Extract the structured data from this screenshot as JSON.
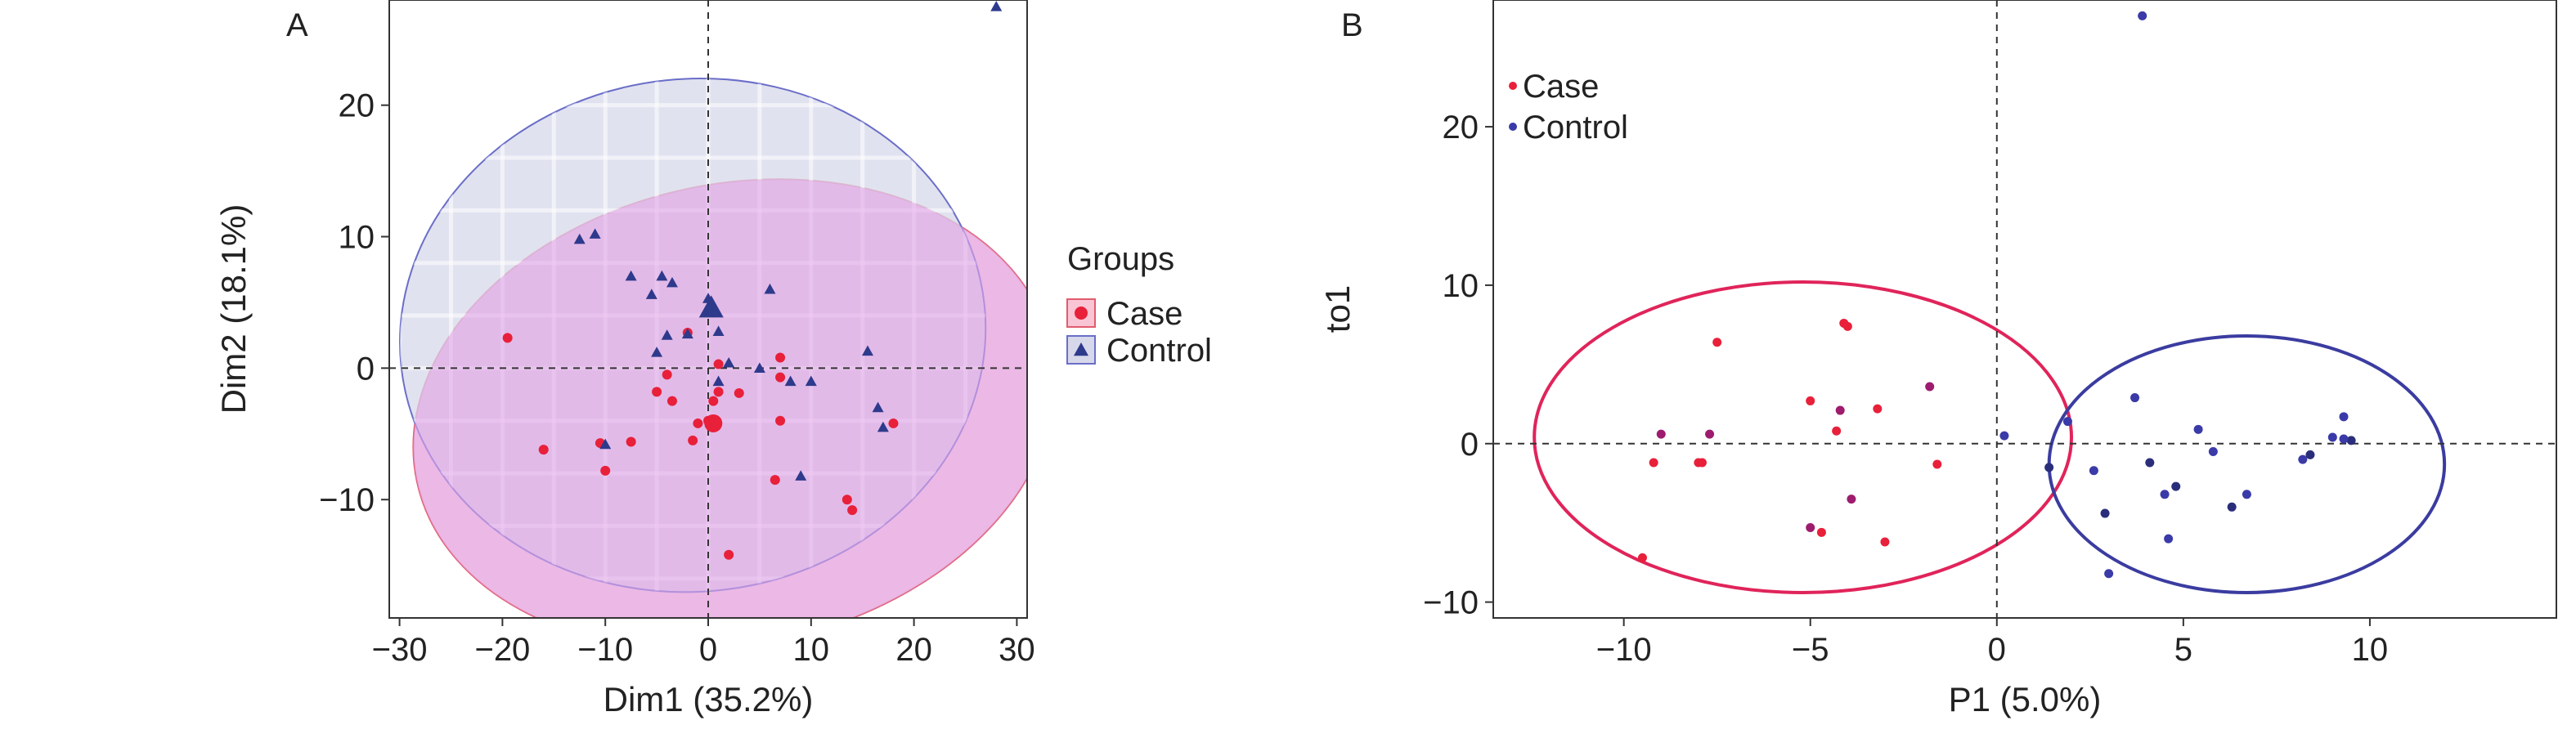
{
  "chart_data": [
    {
      "panel_label": "A",
      "type": "scatter",
      "xlabel": "Dim1 (35.2%)",
      "ylabel": "Dim2 (18.1%)",
      "xlim": [
        -31,
        31
      ],
      "ylim": [
        -19,
        28
      ],
      "xticks": [
        -30,
        -20,
        -10,
        0,
        10,
        20,
        30
      ],
      "yticks": [
        20,
        10,
        0,
        -10
      ],
      "grid": false,
      "reference_lines": {
        "x": 0,
        "y": 0
      },
      "legend": {
        "title": "Groups",
        "position": "right",
        "entries": [
          "Case",
          "Control"
        ]
      },
      "series": [
        {
          "name": "Case",
          "marker": "circle",
          "color": "#e8203a",
          "ellipse": {
            "cx": 2.5,
            "cy": -3.5,
            "rx": 31.5,
            "ry": 17.5,
            "angle": -12,
            "fill": "#f9c4d4",
            "stroke": "#e05c6e"
          },
          "x": [
            -19.5,
            -16,
            -10.5,
            -10,
            -7.5,
            -5,
            -4,
            -3.5,
            -2,
            -1.5,
            -1,
            0,
            0.5,
            1,
            1,
            2,
            3,
            7,
            7,
            7,
            6.5,
            13.5,
            14,
            18
          ],
          "y": [
            2.3,
            -6.2,
            -5.7,
            -7.8,
            -5.6,
            -1.8,
            -0.5,
            -2.5,
            2.7,
            -5.5,
            -4.2,
            -4,
            -2.5,
            -1.8,
            0.3,
            -14.2,
            -1.9,
            0.8,
            -0.7,
            -4,
            -8.5,
            -10,
            -10.8,
            -4.2
          ],
          "centroid": {
            "x": 0.5,
            "y": -4.2
          }
        },
        {
          "name": "Control",
          "marker": "triangle",
          "color": "#2e3a8c",
          "ellipse": {
            "cx": -1.5,
            "cy": 2.5,
            "rx": 28.5,
            "ry": 19.5,
            "angle": -6,
            "fill": "#d7d8ea",
            "stroke": "#6a6ec8"
          },
          "x": [
            28,
            -12.5,
            -11,
            -7.5,
            -5.5,
            -4.5,
            -3.5,
            -4,
            -5,
            0,
            0,
            1,
            1,
            2,
            5,
            6,
            8,
            10,
            15.5,
            16.5,
            17,
            -2,
            -10,
            9
          ],
          "y": [
            27.5,
            9.8,
            10.2,
            7,
            5.6,
            7,
            6.5,
            2.5,
            1.2,
            4.5,
            5.3,
            2.8,
            -1,
            0.4,
            0,
            6,
            -1,
            -1,
            1.3,
            -3,
            -4.5,
            2.6,
            -5.8,
            -8.2
          ],
          "centroid": {
            "x": 0.3,
            "y": 4.6
          }
        }
      ]
    },
    {
      "panel_label": "B",
      "type": "scatter",
      "xlabel": "P1 (5.0%)",
      "ylabel": "to1",
      "xlim": [
        -13.5,
        15
      ],
      "ylim": [
        -11,
        28
      ],
      "xticks": [
        -10,
        -5,
        0,
        5,
        10
      ],
      "yticks": [
        20,
        10,
        0,
        -10
      ],
      "grid": false,
      "reference_lines": {
        "x": 0,
        "y": 0
      },
      "legend": {
        "position": "top-left",
        "entries": [
          "Case",
          "Control"
        ]
      },
      "series": [
        {
          "name": "Case",
          "marker": "circle",
          "color": "#e8203a",
          "ellipse": {
            "cx": -5.2,
            "cy": 0.4,
            "rx": 7.2,
            "ry": 9.8,
            "angle": 0,
            "stroke": "#e0245a"
          },
          "x": [
            -9.5,
            -9.2,
            -9,
            -8,
            -7.9,
            -7.7,
            -7.5,
            -5,
            -5,
            -4.7,
            -4.3,
            -4.2,
            -4.1,
            -4,
            -3.9,
            -3.2,
            -3,
            -1.8,
            -1.6
          ],
          "y": [
            -7.2,
            -1.2,
            0.6,
            -1.2,
            -1.2,
            0.6,
            6.4,
            2.7,
            -5.3,
            -5.6,
            0.8,
            2.1,
            7.6,
            7.4,
            -3.5,
            2.2,
            -6.2,
            3.6,
            -1.3
          ],
          "color_alt": "#9d1c6e"
        },
        {
          "name": "Control",
          "marker": "circle",
          "color": "#3a3aa8",
          "ellipse": {
            "cx": 6.7,
            "cy": -1.3,
            "rx": 5.3,
            "ry": 8.1,
            "angle": 0,
            "stroke": "#3b3ca0"
          },
          "x": [
            3.9,
            0.2,
            1.4,
            1.9,
            2.6,
            2.9,
            3,
            3.7,
            4.1,
            4.5,
            4.6,
            4.8,
            5.4,
            5.8,
            6.3,
            6.7,
            8.2,
            8.4,
            9,
            9.3,
            9.5,
            9.3
          ],
          "y": [
            27,
            0.5,
            -1.5,
            1.4,
            -1.7,
            -4.4,
            -8.2,
            2.9,
            -1.2,
            -3.2,
            -6,
            -2.7,
            0.9,
            -0.5,
            -4,
            -3.2,
            -1,
            -0.7,
            0.4,
            1.7,
            0.2,
            0.3
          ],
          "color_alt": "#2a2e7a"
        }
      ]
    }
  ]
}
